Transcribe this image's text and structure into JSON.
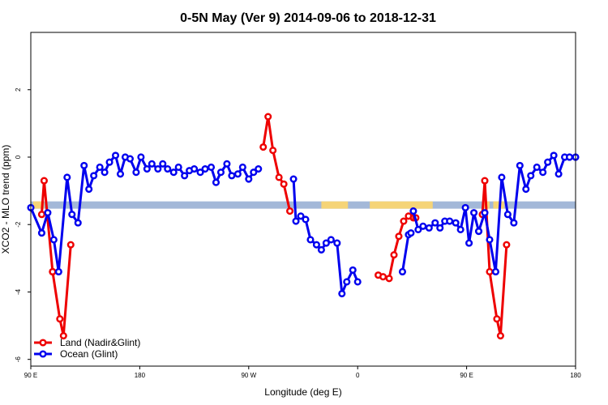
{
  "chart_data": {
    "type": "line",
    "title": "0-5N May (Ver 9)   2014-09-06 to 2018-12-31",
    "xlabel": "Longitude (deg E)",
    "ylabel": "XCO2 - MLO trend (ppm)",
    "xlim": [
      90,
      540
    ],
    "ylim": [
      -6.2,
      3.7
    ],
    "x_ticks": [
      {
        "value": 90,
        "label": "90 E"
      },
      {
        "value": 180,
        "label": "180"
      },
      {
        "value": 270,
        "label": "90 W"
      },
      {
        "value": 360,
        "label": "0"
      },
      {
        "value": 450,
        "label": "90 E"
      },
      {
        "value": 540,
        "label": "180"
      }
    ],
    "y_ticks": [
      {
        "value": -6,
        "label": "-6"
      },
      {
        "value": -4,
        "label": "-4"
      },
      {
        "value": -2,
        "label": "-2"
      },
      {
        "value": 0,
        "label": "0"
      },
      {
        "value": 2,
        "label": "2"
      }
    ],
    "land_mask": {
      "y": -1.42,
      "ocean_color": "#a3b8d8",
      "land_color": "#f5d477",
      "land_ranges": [
        [
          92,
          101
        ],
        [
          330,
          352
        ],
        [
          370,
          422
        ],
        [
          463,
          469
        ],
        [
          472,
          481
        ]
      ]
    },
    "legend": {
      "position": "bottom-left"
    },
    "series": [
      {
        "name": "Land (Nadir&Glint)",
        "color": "#ee0000",
        "segments": [
          {
            "x": [
              99,
              101,
              108,
              114,
              117,
              123
            ],
            "y": [
              -1.7,
              -0.7,
              -3.4,
              -4.8,
              -5.3,
              -2.6
            ]
          },
          {
            "x": [
              282,
              286,
              290,
              295,
              299,
              304
            ],
            "y": [
              0.3,
              1.2,
              0.2,
              -0.6,
              -0.8,
              -1.6
            ]
          },
          {
            "x": [
              108,
              108
            ],
            "y": [
              -3.4,
              -3.4
            ]
          },
          {
            "x": [
              377,
              381,
              386,
              390,
              394,
              398,
              402,
              406,
              408
            ],
            "y": [
              -3.5,
              -3.55,
              -3.6,
              -2.9,
              -2.35,
              -1.9,
              -1.75,
              -1.8,
              -1.8
            ]
          },
          {
            "x": [
              463,
              465,
              469,
              475,
              478,
              483
            ],
            "y": [
              -1.7,
              -0.7,
              -3.4,
              -4.8,
              -5.3,
              -2.6
            ]
          }
        ]
      },
      {
        "name": "Ocean (Glint)",
        "color": "#0000ee",
        "segments": [
          {
            "x": [
              90,
              99,
              104,
              109,
              113,
              120,
              124,
              129,
              134,
              138,
              142,
              147,
              151,
              155,
              160,
              164,
              168,
              172,
              177,
              181,
              186,
              190,
              195,
              199,
              203,
              208,
              212,
              217,
              221,
              225,
              230,
              234,
              239,
              243,
              247,
              252,
              256,
              261,
              265,
              270,
              274,
              278
            ],
            "y": [
              -1.5,
              -2.25,
              -1.65,
              -2.45,
              -3.4,
              -0.6,
              -1.7,
              -1.95,
              -0.25,
              -0.95,
              -0.55,
              -0.3,
              -0.45,
              -0.15,
              0.05,
              -0.5,
              0.0,
              -0.05,
              -0.45,
              0.0,
              -0.35,
              -0.2,
              -0.35,
              -0.2,
              -0.35,
              -0.45,
              -0.3,
              -0.55,
              -0.4,
              -0.35,
              -0.45,
              -0.35,
              -0.3,
              -0.75,
              -0.45,
              -0.2,
              -0.55,
              -0.5,
              -0.3,
              -0.65,
              -0.45,
              -0.35
            ]
          },
          {
            "x": [
              307,
              309,
              313,
              317,
              321,
              326,
              330,
              334,
              338,
              343,
              347,
              351,
              356,
              360
            ],
            "y": [
              -0.65,
              -1.9,
              -1.75,
              -1.85,
              -2.45,
              -2.6,
              -2.75,
              -2.55,
              -2.45,
              -2.55,
              -4.05,
              -3.7,
              -3.35,
              -3.7
            ]
          },
          {
            "x": [
              397,
              402,
              404
            ],
            "y": [
              -3.4,
              -2.3,
              -2.25
            ]
          },
          {
            "x": [
              406,
              410,
              414,
              419,
              424,
              428,
              432,
              436,
              441,
              445,
              449,
              452,
              456,
              460
            ],
            "y": [
              -1.6,
              -2.15,
              -2.05,
              -2.1,
              -1.95,
              -2.1,
              -1.9,
              -1.9,
              -1.95,
              -2.15,
              -1.5,
              -2.55,
              -1.65,
              -2.2
            ]
          },
          {
            "x": [
              460,
              465,
              469,
              474,
              479,
              484,
              489,
              494,
              499,
              503,
              508,
              513,
              517,
              522,
              526,
              531,
              535,
              540
            ],
            "y": [
              -2.2,
              -1.65,
              -2.45,
              -3.4,
              -0.6,
              -1.7,
              -1.95,
              -0.25,
              -0.95,
              -0.55,
              -0.3,
              -0.45,
              -0.15,
              0.05,
              -0.5,
              0.0,
              0.0,
              0.0
            ]
          }
        ]
      }
    ]
  }
}
